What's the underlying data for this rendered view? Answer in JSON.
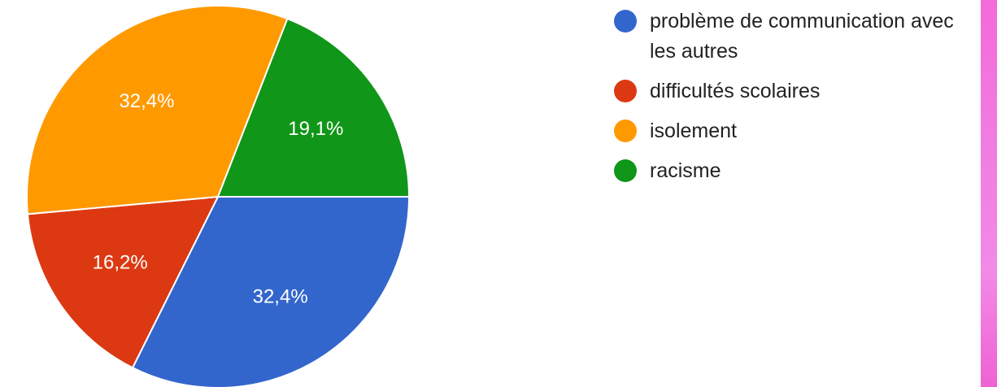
{
  "chart_data": {
    "type": "pie",
    "slices": [
      {
        "label": "problème de communication avec les autres",
        "value": 32.4,
        "display": "32,4%",
        "color": "#3366cc"
      },
      {
        "label": "difficultés scolaires",
        "value": 16.2,
        "display": "16,2%",
        "color": "#dc3912"
      },
      {
        "label": "isolement",
        "value": 32.4,
        "display": "32,4%",
        "color": "#ff9900"
      },
      {
        "label": "racisme",
        "value": 19.1,
        "display": "19,1%",
        "color": "#109618"
      }
    ],
    "start_direction": "3 o'clock",
    "direction": "clockwise",
    "legend_placement": "right"
  }
}
